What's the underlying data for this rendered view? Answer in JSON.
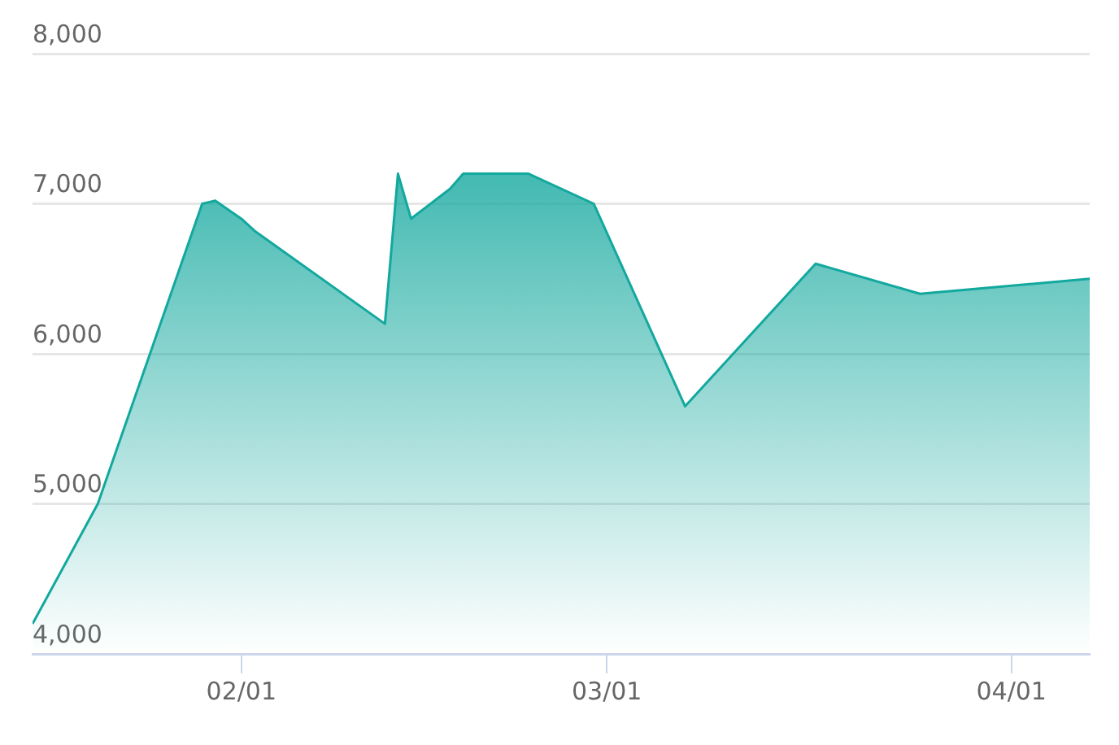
{
  "chart_data": {
    "type": "area",
    "x": [
      "--01-16",
      "--01-21",
      "--01-29",
      "--01-30",
      "--02-01",
      "--02-02",
      "--02-12",
      "--02-13",
      "--02-14",
      "--02-17",
      "--02-18",
      "--02-23",
      "--02-28",
      "--03-07",
      "--03-17",
      "--03-25",
      "--04-07"
    ],
    "values": [
      4200,
      5000,
      7000,
      7020,
      6900,
      6820,
      6200,
      7200,
      6900,
      7100,
      7200,
      7200,
      7000,
      5650,
      6600,
      6400,
      6500
    ],
    "color": "#13a89e",
    "xlim": [
      "--01-16",
      "--04-07"
    ],
    "xticks": [
      {
        "value": "--02-01",
        "label": "02/01"
      },
      {
        "value": "--03-01",
        "label": "03/01"
      },
      {
        "value": "--04-01",
        "label": "04/01"
      }
    ],
    "ylim": [
      4000,
      8000
    ],
    "yticks": [
      {
        "value": 4000,
        "label": "4,000"
      },
      {
        "value": 5000,
        "label": "5,000"
      },
      {
        "value": 6000,
        "label": "6,000"
      },
      {
        "value": 7000,
        "label": "7,000"
      },
      {
        "value": 8000,
        "label": "8,000"
      }
    ],
    "grid": "y"
  }
}
